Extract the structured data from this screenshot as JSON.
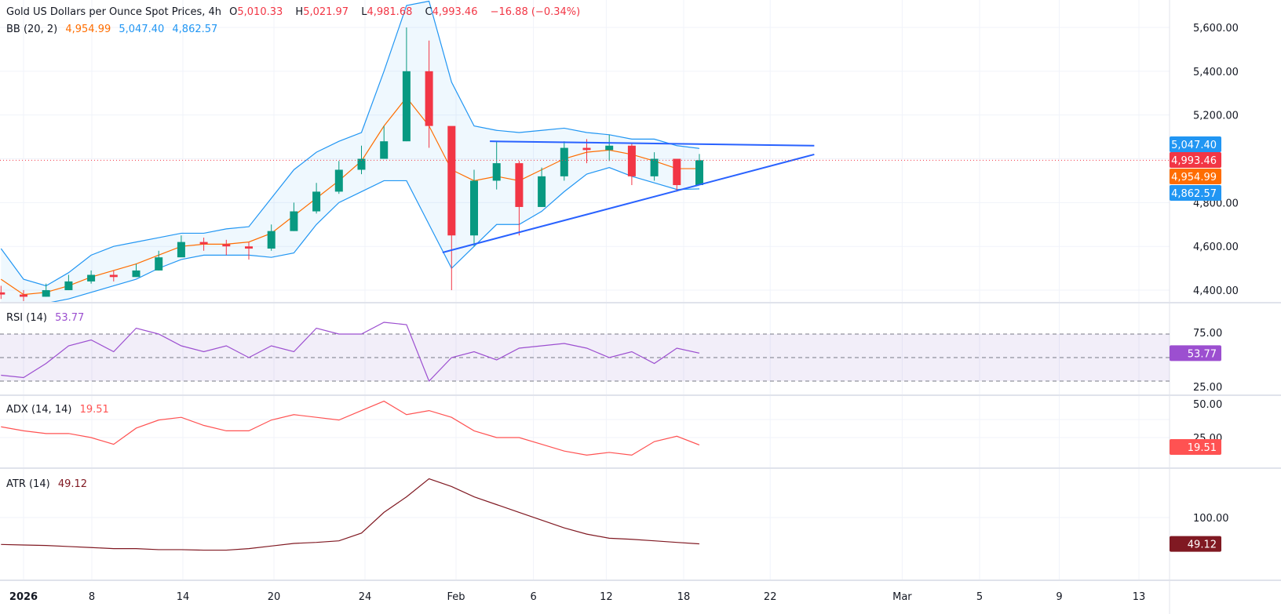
{
  "header": {
    "title": "Gold US Dollars per Ounce Spot Prices, 4h",
    "o_label": "O",
    "o": "5,010.33",
    "h_label": "H",
    "h": "5,021.97",
    "l_label": "L",
    "l": "4,981.68",
    "c_label": "C",
    "c": "4,993.46",
    "change": "−16.88 (−0.34%)"
  },
  "bb_legend": {
    "label": "BB (20, 2)",
    "basis": "4,954.99",
    "upper": "5,047.40",
    "lower": "4,862.57"
  },
  "rsi_legend": {
    "label": "RSI (14)",
    "value": "53.77"
  },
  "adx_legend": {
    "label": "ADX (14, 14)",
    "value": "19.51"
  },
  "atr_legend": {
    "label": "ATR (14)",
    "value": "49.12"
  },
  "price_axis": {
    "ticks": [
      "5,600.00",
      "5,400.00",
      "5,200.00",
      "4,800.00",
      "4,600.00",
      "4,400.00"
    ],
    "badges": {
      "upper": "5,047.40",
      "last": "4,993.46",
      "basis": "4,954.99",
      "lower": "4,862.57"
    }
  },
  "rsi_axis": {
    "ticks": [
      "75.00",
      "25.00"
    ],
    "badge": "53.77"
  },
  "adx_axis": {
    "ticks": [
      "50.00",
      "25.00"
    ],
    "badge": "19.51"
  },
  "atr_axis": {
    "ticks": [
      "100.00"
    ],
    "badge": "49.12"
  },
  "time_axis": {
    "ticks": [
      "2026",
      "8",
      "14",
      "20",
      "24",
      "Feb",
      "6",
      "12",
      "18",
      "22",
      "Mar",
      "5",
      "9",
      "13"
    ]
  },
  "colors": {
    "up": "#089981",
    "down": "#f23645",
    "bb_band": "#2196f3",
    "bb_basis": "#ff6d00",
    "rsi": "#9c4fd0",
    "adx": "#ff5252",
    "atr": "#801922",
    "trendline": "#2962ff"
  },
  "chart_data": {
    "type": "candlestick",
    "title": "Gold US Dollars per Ounce Spot Prices, 4h",
    "ylim": [
      4350,
      5700
    ],
    "time_ticks": [
      {
        "label": "2026",
        "i": 0
      },
      {
        "label": "8",
        "i": 3
      },
      {
        "label": "14",
        "i": 7
      },
      {
        "label": "20",
        "i": 11
      },
      {
        "label": "24",
        "i": 15
      },
      {
        "label": "Feb",
        "i": 19
      },
      {
        "label": "6",
        "i": 22.4
      },
      {
        "label": "12",
        "i": 25.6
      },
      {
        "label": "18",
        "i": 29
      },
      {
        "label": "22",
        "i": 32.8
      },
      {
        "label": "Mar",
        "i": 38.6
      },
      {
        "label": "5",
        "i": 42
      },
      {
        "label": "9",
        "i": 45.5
      },
      {
        "label": "13",
        "i": 49
      }
    ],
    "close": [
      4380,
      4370,
      4400,
      4440,
      4470,
      4460,
      4490,
      4550,
      4620,
      4610,
      4600,
      4590,
      4670,
      4760,
      4850,
      4950,
      5000,
      5080,
      5400,
      5150,
      4650,
      4900,
      4980,
      4780,
      4920,
      5050,
      5040,
      5060,
      4920,
      5000,
      4880,
      4993.46
    ],
    "high": [
      4420,
      4400,
      4430,
      4470,
      4490,
      4490,
      4520,
      4580,
      4650,
      4640,
      4630,
      4620,
      4700,
      4800,
      4890,
      4990,
      5060,
      5150,
      5600,
      5540,
      5120,
      4950,
      5080,
      4990,
      4960,
      5080,
      5090,
      5110,
      5070,
      5030,
      5000,
      5021.97
    ],
    "low": [
      4360,
      4350,
      4370,
      4400,
      4430,
      4440,
      4460,
      4490,
      4560,
      4580,
      4560,
      4540,
      4580,
      4670,
      4750,
      4840,
      4930,
      5000,
      5080,
      5050,
      4400,
      4600,
      4860,
      4650,
      4780,
      4900,
      4980,
      4990,
      4880,
      4900,
      4850,
      4981.68
    ],
    "bb_upper": [
      4590,
      4450,
      4420,
      4480,
      4560,
      4600,
      4620,
      4640,
      4660,
      4660,
      4680,
      4690,
      4820,
      4950,
      5030,
      5080,
      5120,
      5400,
      5700,
      5720,
      5350,
      5150,
      5130,
      5120,
      5130,
      5140,
      5120,
      5110,
      5090,
      5090,
      5060,
      5047.4
    ],
    "bb_basis": [
      4450,
      4380,
      4390,
      4420,
      4460,
      4490,
      4520,
      4560,
      4600,
      4610,
      4610,
      4620,
      4660,
      4740,
      4820,
      4900,
      4990,
      5150,
      5280,
      5150,
      4950,
      4900,
      4920,
      4900,
      4950,
      5000,
      5030,
      5040,
      5020,
      4990,
      4955,
      4954.99
    ],
    "bb_lower": [
      4300,
      4300,
      4340,
      4360,
      4390,
      4420,
      4450,
      4500,
      4540,
      4560,
      4560,
      4560,
      4550,
      4570,
      4700,
      4800,
      4850,
      4900,
      4900,
      4700,
      4500,
      4600,
      4700,
      4700,
      4760,
      4850,
      4930,
      4960,
      4920,
      4890,
      4860,
      4862.57
    ],
    "rsi": [
      35,
      33,
      45,
      60,
      65,
      55,
      75,
      70,
      60,
      55,
      60,
      50,
      60,
      55,
      75,
      70,
      70,
      80,
      78,
      30,
      50,
      55,
      48,
      58,
      60,
      62,
      58,
      50,
      55,
      45,
      58,
      53.77
    ],
    "adx": [
      33,
      30,
      28,
      28,
      25,
      20,
      32,
      38,
      40,
      34,
      30,
      30,
      38,
      42,
      40,
      38,
      45,
      52,
      42,
      45,
      40,
      30,
      25,
      25,
      20,
      15,
      12,
      14,
      12,
      22,
      26,
      19.51
    ],
    "atr": [
      48,
      47,
      46,
      44,
      42,
      40,
      40,
      38,
      38,
      37,
      37,
      40,
      45,
      50,
      52,
      55,
      70,
      110,
      140,
      175,
      160,
      140,
      125,
      110,
      95,
      80,
      68,
      60,
      58,
      55,
      52,
      49.12
    ],
    "rsi_levels": [
      70,
      50,
      30
    ],
    "trendlines": [
      {
        "from": {
          "i": 20.7,
          "price": 5080
        },
        "to": {
          "i": 35.1,
          "price": 5060
        }
      },
      {
        "from": {
          "i": 18.6,
          "price": 4572
        },
        "to": {
          "i": 35.1,
          "price": 5020
        }
      }
    ],
    "last_price": 4993.46
  }
}
